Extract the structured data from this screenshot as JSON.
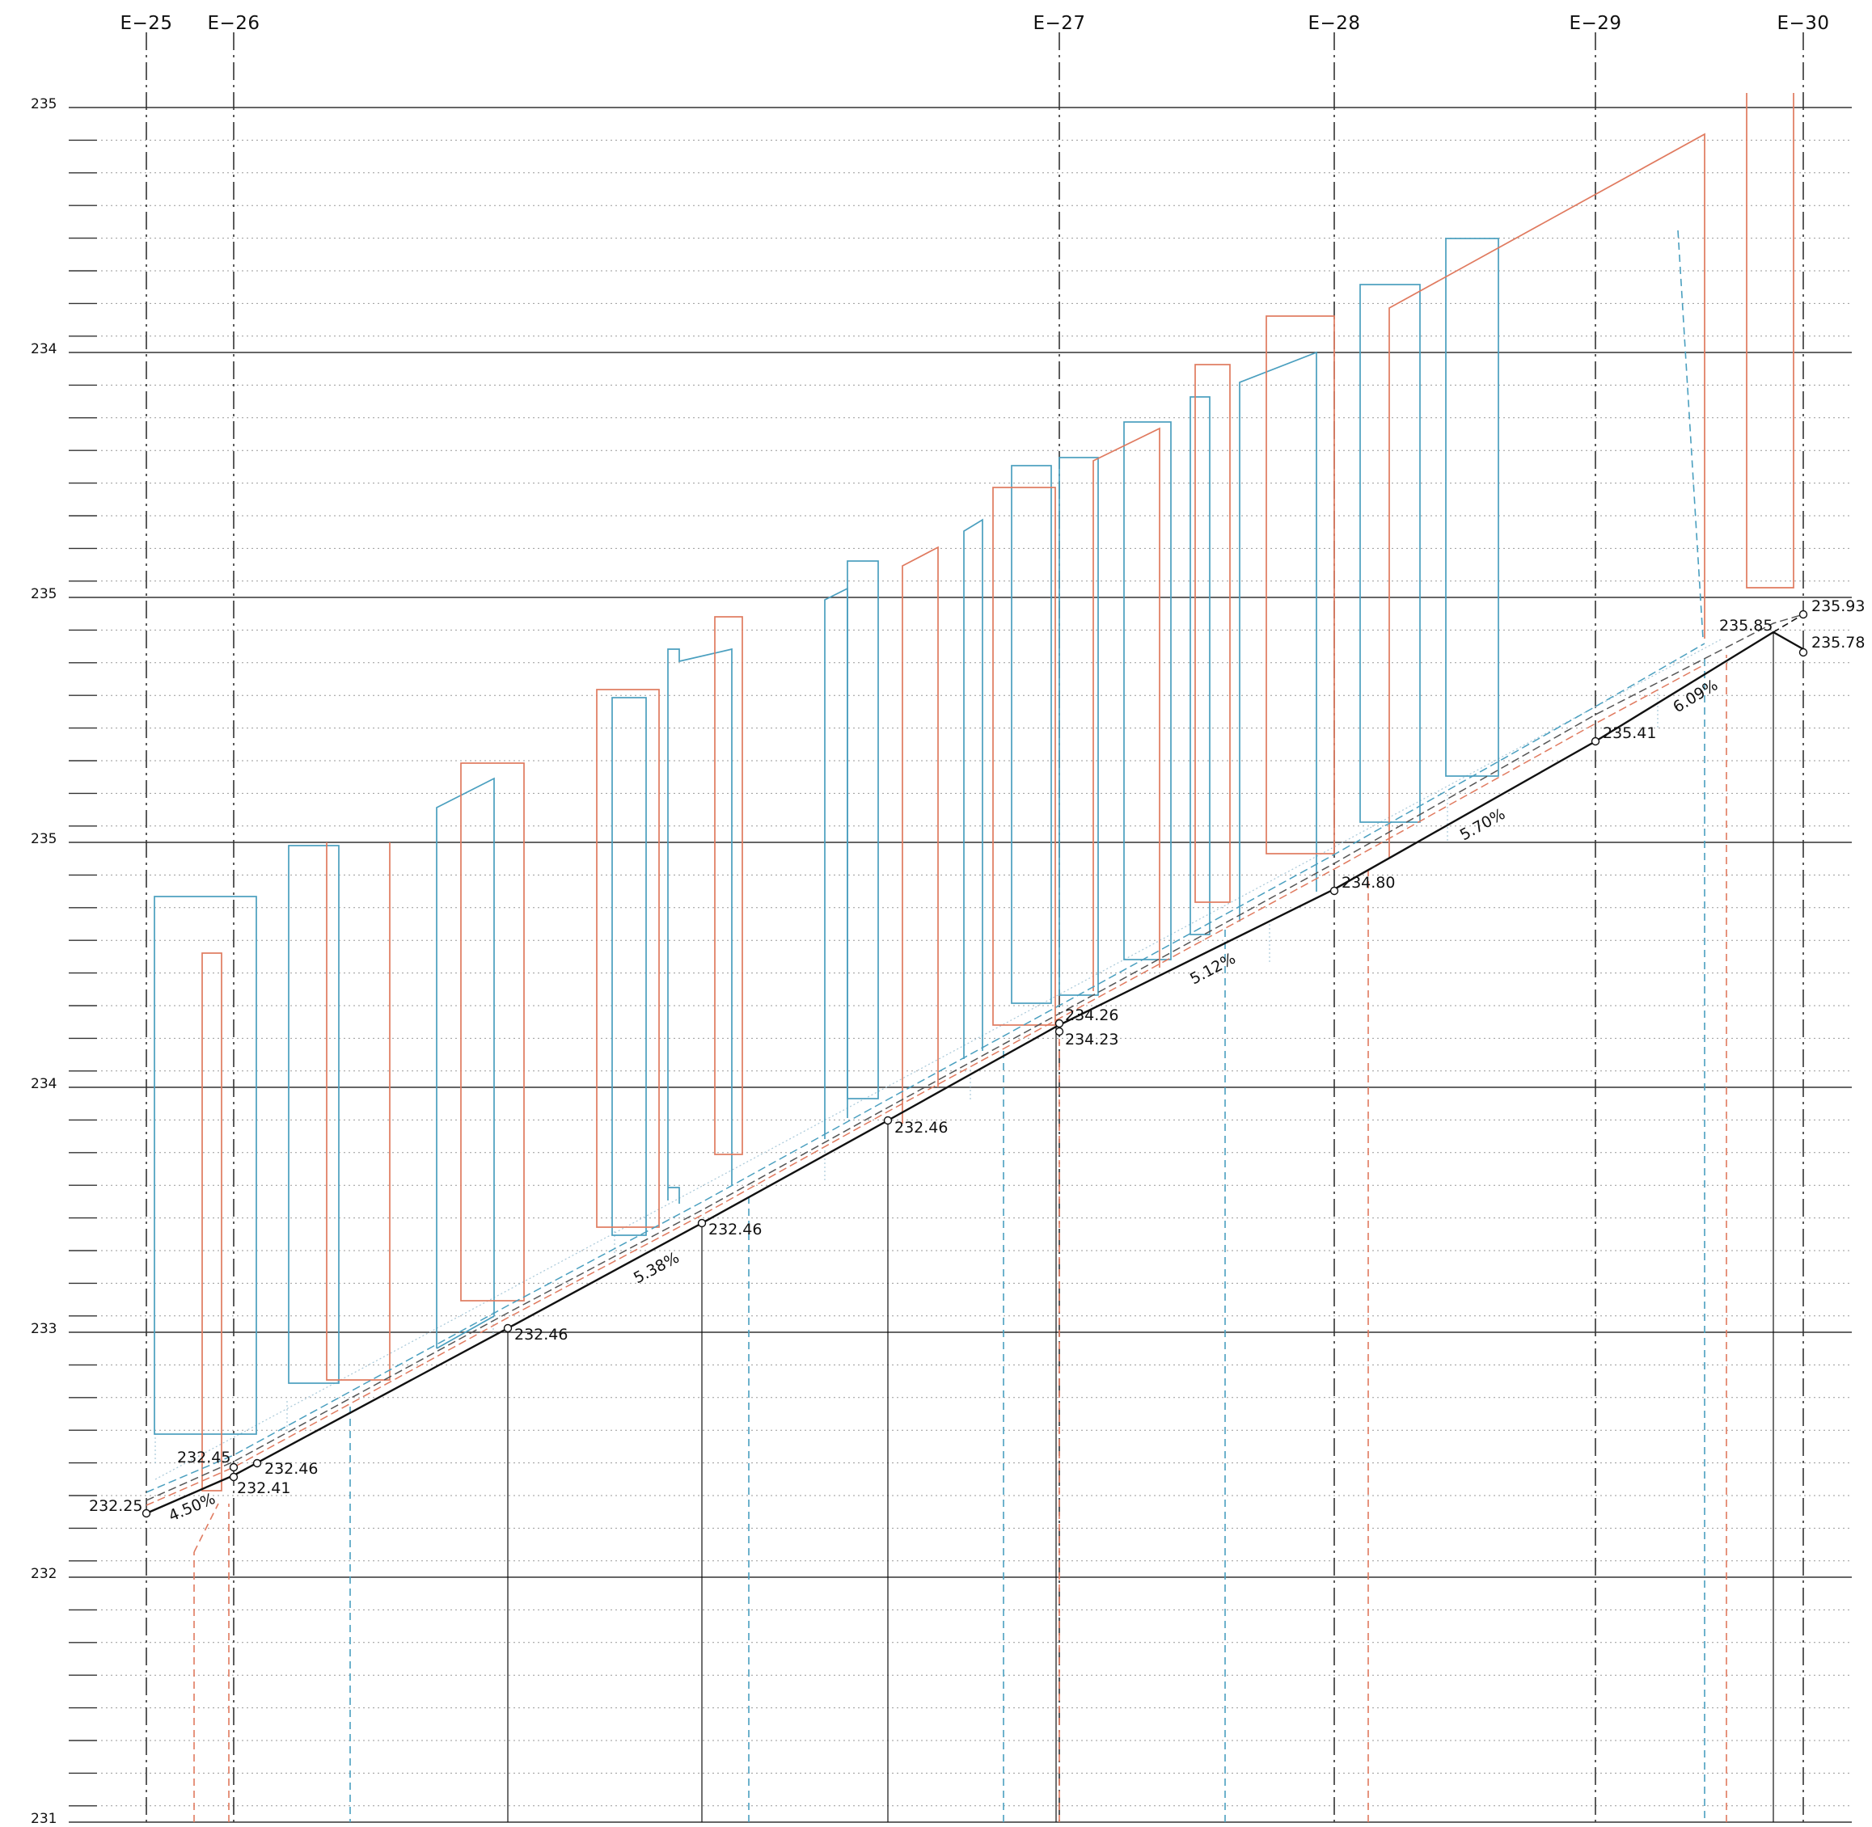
{
  "diagram": {
    "grid_lines": [
      {
        "label": "E−25"
      },
      {
        "label": "E−26"
      },
      {
        "label": "E−27"
      },
      {
        "label": "E−28"
      },
      {
        "label": "E−29"
      },
      {
        "label": "E−30"
      }
    ],
    "datum_labels": [
      "235",
      "234",
      "235",
      "235",
      "234",
      "233",
      "232",
      "231"
    ],
    "level_labels": [
      "232.25",
      "232.45",
      "232.46",
      "232.41",
      "232.46",
      "232.46",
      "232.46",
      "234.26",
      "234.23",
      "234.80",
      "235.41",
      "235.85",
      "235.93",
      "235.78"
    ],
    "slope_labels": [
      "4.50%",
      "5.38%",
      "5.12%",
      "5.70%",
      "6.09%"
    ],
    "colors": {
      "axis": "#333333",
      "profile": "#111111",
      "orange": "#e07a5f",
      "blue": "#4a9fbf",
      "dotted": "#999999"
    }
  }
}
